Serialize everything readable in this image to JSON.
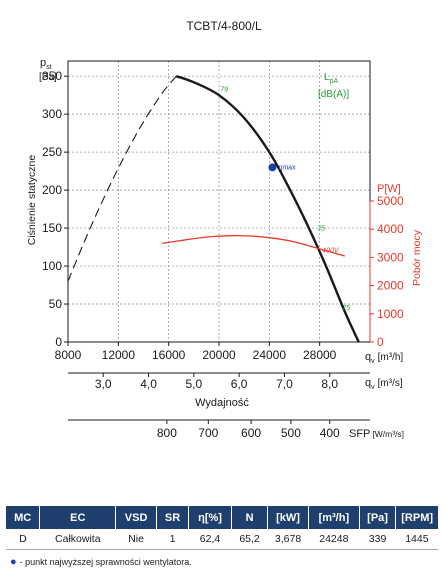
{
  "chart_data": {
    "type": "line",
    "title": "TCBT/4-800/L",
    "left_axis": {
      "label_top": "p",
      "label_sub": "st",
      "unit": "[Pa]",
      "rotated_label": "Ciśnienie statyczne",
      "ticks": [
        0,
        50,
        100,
        150,
        200,
        250,
        300,
        350
      ],
      "ylim": [
        0,
        370
      ]
    },
    "right_axis": {
      "label": "P[W]",
      "rotated_label": "Pobór mocy",
      "ticks": [
        0,
        1000,
        2000,
        3000,
        4000,
        5000
      ],
      "ylim": [
        0,
        5000
      ]
    },
    "sound_label": {
      "line1": "L",
      "sub": "pA",
      "line2": "[dB(A)]"
    },
    "x_axis_flow": {
      "label": "q",
      "sub": "v",
      "unit": "[m³/h]",
      "ticks": [
        8000,
        12000,
        16000,
        20000,
        24000,
        28000
      ],
      "tick_labels": [
        "8000",
        "12000",
        "16000",
        "20000",
        "24000",
        "28000"
      ],
      "xlim": [
        8000,
        32000
      ]
    },
    "x_axis_flow_s": {
      "label": "q",
      "sub": "v",
      "unit": "[m³/s]",
      "ticks": [
        3.0,
        4.0,
        5.0,
        6.0,
        7.0,
        8.0
      ],
      "tick_labels": [
        "3,0",
        "4,0",
        "5,0",
        "6,0",
        "7,0",
        "8,0"
      ]
    },
    "x_axis_title": "Wydajność",
    "sfp_axis": {
      "label": "SFP",
      "unit": "[W/m³/s]",
      "ticks": [
        800,
        700,
        600,
        500,
        400
      ],
      "tick_labels": [
        "800",
        "700",
        "600",
        "500",
        "400"
      ]
    },
    "series": [
      {
        "axis": "left",
        "color": "#1a1a1a",
        "style": "dashed",
        "x": [
          8000,
          9500,
          11000,
          12500,
          14000,
          15500,
          16600
        ],
        "y": [
          80,
          140,
          195,
          245,
          290,
          328,
          350
        ]
      },
      {
        "axis": "left",
        "color": "#1a1a1a",
        "style": "solid",
        "x": [
          16600,
          18000,
          20000,
          22000,
          24000,
          25500,
          27000,
          28500,
          30000,
          31100
        ],
        "y": [
          350,
          342,
          325,
          295,
          250,
          205,
          155,
          100,
          40,
          0
        ]
      },
      {
        "name": "400V",
        "axis": "right",
        "color": "#e8392b",
        "style": "solid",
        "x": [
          15500,
          17000,
          19000,
          21000,
          22500,
          24000,
          26000,
          28000,
          30000
        ],
        "y": [
          3500,
          3600,
          3720,
          3770,
          3760,
          3700,
          3550,
          3300,
          3050
        ]
      }
    ],
    "sound_markers": [
      {
        "text": "79",
        "x": 20100,
        "y": 330
      },
      {
        "text": "75",
        "x": 27800,
        "y": 147
      },
      {
        "text": "75",
        "x": 29800,
        "y": 42
      }
    ],
    "optimum": {
      "label": "ηmax",
      "x": 24248,
      "y": 230
    },
    "line_label_400v": {
      "text": "400V",
      "x": 28200,
      "y": 3180
    },
    "grid": true
  },
  "spec_table": {
    "headers": [
      "MC",
      "EC",
      "VSD",
      "SR",
      "η[%]",
      "N",
      "[kW]",
      "[m³/h]",
      "[Pa]",
      "[RPM]"
    ],
    "row": [
      "D",
      "Całkowita",
      "Nie",
      "1",
      "62,4",
      "65,2",
      "3,678",
      "24248",
      "339",
      "1445"
    ]
  },
  "footnote": "- punkt najwyższej sprawności wentylatora."
}
